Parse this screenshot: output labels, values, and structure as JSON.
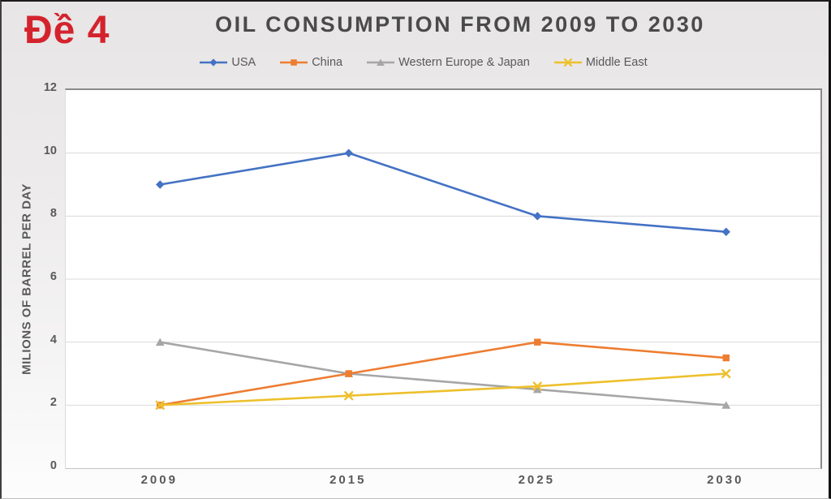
{
  "badge": {
    "text": "Đề 4",
    "color": "#d4232d"
  },
  "chart_data": {
    "type": "line",
    "title": "OIL CONSUMPTION FROM 2009 TO 2030",
    "title_color": "#4a4a4a",
    "categories": [
      "2009",
      "2015",
      "2025",
      "2030"
    ],
    "series": [
      {
        "name": "USA",
        "color": "#4472C4",
        "marker": "diamond",
        "values": [
          9,
          10,
          8,
          7.5
        ]
      },
      {
        "name": "China",
        "color": "#ED7D31",
        "marker": "square",
        "values": [
          2,
          3,
          4,
          3.5
        ]
      },
      {
        "name": "Western Europe & Japan",
        "color": "#A6A6A6",
        "marker": "triangle",
        "values": [
          4,
          3,
          2.5,
          2
        ]
      },
      {
        "name": "Middle East",
        "color": "#EDC02C",
        "marker": "x",
        "values": [
          2,
          2.3,
          2.6,
          3
        ]
      }
    ],
    "xlabel": "",
    "ylabel": "MILIONS OF BARREL PER DAY",
    "ylim": [
      0,
      12
    ],
    "yticks": [
      0,
      2,
      4,
      6,
      8,
      10,
      12
    ],
    "grid": true,
    "gridline_color": "#d9d9d9",
    "axis_text_color": "#595959",
    "legend_position": "top"
  }
}
